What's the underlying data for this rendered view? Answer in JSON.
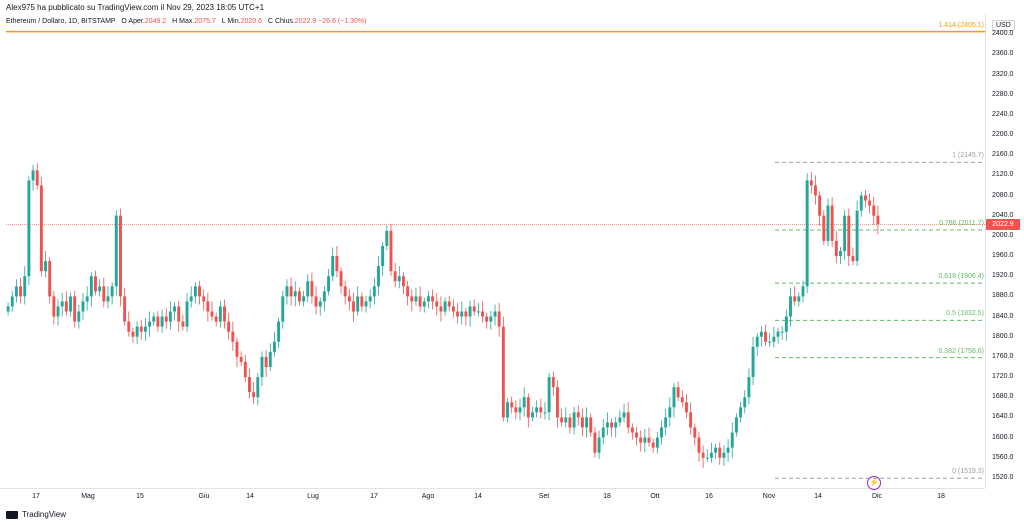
{
  "header": {
    "published": "Alex975 ha pubblicato su TradingView.com il Nov 29, 2023 18:05 UTC+1"
  },
  "legend": {
    "symbol": "Ethereum / Dollaro, 1D, BITSTAMP",
    "open_label": "O",
    "open_key": "Aper.",
    "open": "2049.2",
    "high_label": "H",
    "high_key": "Max.",
    "high": "2075.7",
    "low_label": "L",
    "low_key": "Min.",
    "low": "2020.6",
    "close_label": "C",
    "close_key": "Chius.",
    "close": "2022.9",
    "change": "−26.6 (−1.30%)"
  },
  "currency": "USD",
  "last_price": "2022.9",
  "colors": {
    "up": "#26a69a",
    "down": "#ef5350",
    "fib": "#66bb6a",
    "fib_top": "#ff9800",
    "fib_gray": "#9e9e9e"
  },
  "price_axis": [
    "2400.0",
    "2360.0",
    "2320.0",
    "2280.0",
    "2240.0",
    "2200.0",
    "2160.0",
    "2120.0",
    "2080.0",
    "2040.0",
    "2000.0",
    "1960.0",
    "1920.0",
    "1880.0",
    "1840.0",
    "1800.0",
    "1760.0",
    "1720.0",
    "1680.0",
    "1640.0",
    "1600.0",
    "1560.0",
    "1520.0"
  ],
  "time_axis": [
    "17",
    "Mag",
    "15",
    "Giu",
    "14",
    "Lug",
    "17",
    "Ago",
    "14",
    "Set",
    "18",
    "Ott",
    "16",
    "Nov",
    "14",
    "Dic",
    "18"
  ],
  "fib_levels": [
    {
      "label": "1.414 (2405.1)",
      "price": 2405.1
    },
    {
      "label": "1 (2145.7)",
      "price": 2145.7
    },
    {
      "label": "0.786 (2011.7)",
      "price": 2011.7
    },
    {
      "label": "0.618 (1906.4)",
      "price": 1906.4
    },
    {
      "label": "0.5 (1832.5)",
      "price": 1832.5
    },
    {
      "label": "0.382 (1758.6)",
      "price": 1758.6
    },
    {
      "label": "0 (1519.3)",
      "price": 1519.3
    }
  ],
  "footer": {
    "brand": "TradingView"
  },
  "chart_data": {
    "type": "candlestick",
    "ylim": [
      1500,
      2440
    ],
    "closes": [
      1860,
      1880,
      1900,
      1880,
      1920,
      2110,
      2130,
      2100,
      1930,
      1950,
      1880,
      1840,
      1860,
      1870,
      1850,
      1880,
      1830,
      1850,
      1870,
      1880,
      1920,
      1890,
      1900,
      1870,
      1880,
      1900,
      2040,
      1880,
      1830,
      1810,
      1800,
      1820,
      1810,
      1820,
      1830,
      1840,
      1820,
      1840,
      1830,
      1850,
      1860,
      1830,
      1820,
      1870,
      1880,
      1900,
      1880,
      1870,
      1850,
      1840,
      1830,
      1860,
      1830,
      1810,
      1790,
      1760,
      1750,
      1720,
      1690,
      1680,
      1720,
      1760,
      1740,
      1770,
      1790,
      1830,
      1880,
      1900,
      1880,
      1890,
      1870,
      1880,
      1910,
      1880,
      1860,
      1870,
      1890,
      1920,
      1960,
      1930,
      1900,
      1880,
      1870,
      1850,
      1880,
      1860,
      1870,
      1880,
      1900,
      1940,
      1980,
      2010,
      1930,
      1910,
      1920,
      1900,
      1880,
      1870,
      1880,
      1860,
      1870,
      1880,
      1870,
      1860,
      1850,
      1870,
      1860,
      1850,
      1840,
      1850,
      1840,
      1860,
      1850,
      1850,
      1840,
      1830,
      1840,
      1850,
      1820,
      1640,
      1670,
      1660,
      1650,
      1660,
      1680,
      1640,
      1650,
      1660,
      1650,
      1650,
      1720,
      1700,
      1640,
      1630,
      1640,
      1620,
      1650,
      1640,
      1620,
      1640,
      1610,
      1570,
      1600,
      1620,
      1630,
      1620,
      1630,
      1640,
      1650,
      1620,
      1610,
      1600,
      1590,
      1600,
      1590,
      1580,
      1600,
      1620,
      1640,
      1660,
      1700,
      1680,
      1670,
      1650,
      1620,
      1600,
      1570,
      1560,
      1560,
      1570,
      1580,
      1560,
      1570,
      1580,
      1610,
      1640,
      1660,
      1680,
      1720,
      1780,
      1800,
      1810,
      1790,
      1790,
      1800,
      1810,
      1810,
      1840,
      1880,
      1870,
      1880,
      1900,
      2110,
      2100,
      2080,
      2040,
      1990,
      2060,
      1990,
      1960,
      1970,
      2040,
      1960,
      1950,
      2050,
      2080,
      2070,
      2060,
      2040,
      2022.9
    ]
  }
}
